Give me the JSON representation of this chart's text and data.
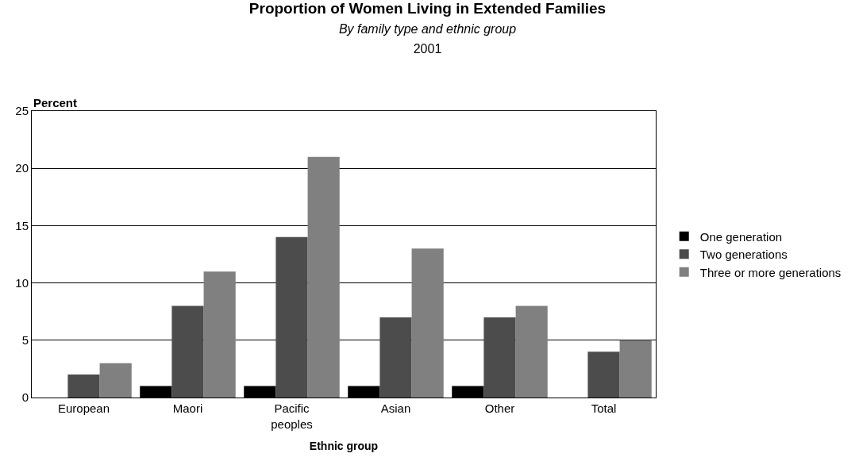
{
  "chart_data": {
    "type": "bar",
    "title": "Proportion of Women Living in Extended Families",
    "subtitle": "By family type and ethnic group",
    "annotations": [
      "2001"
    ],
    "xlabel": "Ethnic group",
    "ylabel": "Percent",
    "categories": [
      "European",
      "Maori",
      "Pacific peoples",
      "Asian",
      "Other",
      "Total"
    ],
    "series": [
      {
        "name": "One generation",
        "color": "#000000",
        "values": [
          0,
          1,
          1,
          1,
          1,
          0
        ]
      },
      {
        "name": "Two generations",
        "color": "#4c4c4c",
        "values": [
          2,
          8,
          14,
          7,
          7,
          4
        ]
      },
      {
        "name": "Three or more generations",
        "color": "#808080",
        "values": [
          3,
          11,
          21,
          13,
          8,
          5
        ]
      }
    ],
    "ylim": [
      0,
      25
    ],
    "yticks": [
      0,
      5,
      10,
      15,
      20,
      25
    ],
    "grid": "y",
    "legend": "right"
  }
}
